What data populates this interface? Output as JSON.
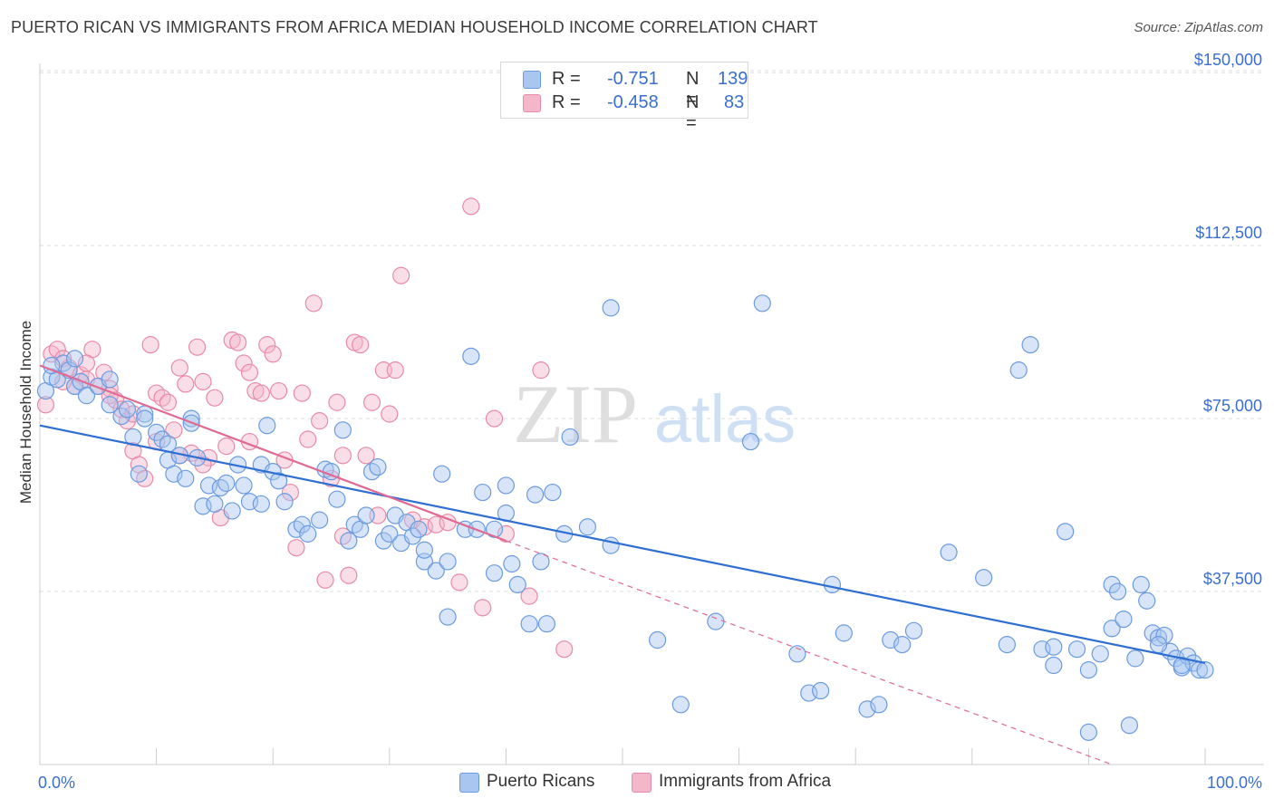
{
  "title": "PUERTO RICAN VS IMMIGRANTS FROM AFRICA MEDIAN HOUSEHOLD INCOME CORRELATION CHART",
  "source": "Source: ZipAtlas.com",
  "watermark": {
    "zip": "ZIP",
    "atlas": "atlas"
  },
  "colors": {
    "blue_fill": "#a9c6f0",
    "blue_stroke": "#6b9be0",
    "blue_line": "#2f6fd3",
    "pink_fill": "#f4b6c9",
    "pink_stroke": "#e98aa8",
    "pink_line": "#e06a92",
    "tick_label": "#3a6fd0",
    "grid": "#dddddd"
  },
  "legend": {
    "rows": [
      {
        "r_label": "R = ",
        "r_value": "-0.751",
        "n_label": "N = ",
        "n_value": "139"
      },
      {
        "r_label": "R = ",
        "r_value": "-0.458",
        "n_label": "N = ",
        "n_value": "83"
      }
    ]
  },
  "chart_data": {
    "type": "scatter",
    "title": "PUERTO RICAN VS IMMIGRANTS FROM AFRICA MEDIAN HOUSEHOLD INCOME CORRELATION CHART",
    "xlabel": "",
    "ylabel": "Median Household Income",
    "xlim": [
      0,
      100
    ],
    "ylim": [
      0,
      152000
    ],
    "x_tick_labels": [
      "0.0%",
      "100.0%"
    ],
    "y_ticks": [
      37500,
      75000,
      112500,
      150000
    ],
    "y_tick_labels": [
      "$37,500",
      "$75,000",
      "$112,500",
      "$150,000"
    ],
    "grid": true,
    "legend_position": "top-center",
    "series": [
      {
        "name": "Puerto Ricans",
        "r": -0.751,
        "n": 139,
        "trend": {
          "x": [
            0,
            100
          ],
          "y": [
            73500,
            22000
          ]
        },
        "points": [
          [
            0.5,
            81000
          ],
          [
            1,
            84000
          ],
          [
            1.5,
            83500
          ],
          [
            2,
            87000
          ],
          [
            2.5,
            85500
          ],
          [
            3,
            82000
          ],
          [
            3.5,
            83000
          ],
          [
            4,
            80000
          ],
          [
            5,
            82000
          ],
          [
            6,
            83500
          ],
          [
            7,
            75500
          ],
          [
            7.5,
            77000
          ],
          [
            8,
            71000
          ],
          [
            8.5,
            63000
          ],
          [
            9,
            76000
          ],
          [
            10,
            72000
          ],
          [
            10.5,
            70500
          ],
          [
            11,
            69500
          ],
          [
            11,
            66000
          ],
          [
            11.5,
            63000
          ],
          [
            12,
            67000
          ],
          [
            12.5,
            62000
          ],
          [
            13,
            75000
          ],
          [
            13.5,
            66500
          ],
          [
            14,
            56000
          ],
          [
            14.5,
            60500
          ],
          [
            15,
            56500
          ],
          [
            15.5,
            60000
          ],
          [
            16,
            61000
          ],
          [
            16.5,
            55000
          ],
          [
            17,
            65000
          ],
          [
            17.5,
            60500
          ],
          [
            18,
            57000
          ],
          [
            19,
            56500
          ],
          [
            19,
            65000
          ],
          [
            19.5,
            73500
          ],
          [
            20,
            63500
          ],
          [
            20.5,
            61500
          ],
          [
            21,
            57000
          ],
          [
            22,
            51000
          ],
          [
            22.5,
            52000
          ],
          [
            23,
            50000
          ],
          [
            24,
            53000
          ],
          [
            24.5,
            64000
          ],
          [
            25,
            63500
          ],
          [
            25.5,
            57500
          ],
          [
            26,
            72500
          ],
          [
            26.5,
            48500
          ],
          [
            27,
            52000
          ],
          [
            27.5,
            51000
          ],
          [
            28,
            54000
          ],
          [
            28.5,
            63500
          ],
          [
            29,
            64500
          ],
          [
            29.5,
            48500
          ],
          [
            30,
            50000
          ],
          [
            30.5,
            54000
          ],
          [
            31,
            48000
          ],
          [
            31.5,
            52500
          ],
          [
            32,
            49500
          ],
          [
            32.5,
            51000
          ],
          [
            33,
            44000
          ],
          [
            33,
            46500
          ],
          [
            34,
            42000
          ],
          [
            34.5,
            63000
          ],
          [
            35,
            44000
          ],
          [
            35,
            32000
          ],
          [
            36.5,
            51000
          ],
          [
            37,
            88500
          ],
          [
            37.5,
            51000
          ],
          [
            38,
            59000
          ],
          [
            39,
            51000
          ],
          [
            39,
            41500
          ],
          [
            40,
            54500
          ],
          [
            40,
            60500
          ],
          [
            40.5,
            43500
          ],
          [
            41,
            39000
          ],
          [
            42,
            30500
          ],
          [
            42.5,
            58500
          ],
          [
            43,
            44000
          ],
          [
            43.5,
            30500
          ],
          [
            44,
            59000
          ],
          [
            45,
            50000
          ],
          [
            45.5,
            71000
          ],
          [
            47,
            51500
          ],
          [
            49,
            47500
          ],
          [
            49,
            99000
          ],
          [
            53,
            27000
          ],
          [
            55,
            13000
          ],
          [
            58,
            31000
          ],
          [
            61,
            70000
          ],
          [
            62,
            100000
          ],
          [
            65,
            24000
          ],
          [
            66,
            15500
          ],
          [
            67,
            16000
          ],
          [
            68,
            39000
          ],
          [
            69,
            28500
          ],
          [
            71,
            12000
          ],
          [
            72,
            13000
          ],
          [
            73,
            27000
          ],
          [
            74,
            26000
          ],
          [
            75,
            29000
          ],
          [
            78,
            46000
          ],
          [
            81,
            40500
          ],
          [
            83,
            26000
          ],
          [
            84,
            85500
          ],
          [
            85,
            91000
          ],
          [
            86,
            25000
          ],
          [
            87,
            25500
          ],
          [
            87,
            21500
          ],
          [
            88,
            50500
          ],
          [
            89,
            25000
          ],
          [
            90,
            20500
          ],
          [
            90,
            7000
          ],
          [
            91,
            24000
          ],
          [
            92,
            39000
          ],
          [
            92,
            29500
          ],
          [
            92.5,
            37500
          ],
          [
            93,
            31500
          ],
          [
            93.5,
            8500
          ],
          [
            94,
            23000
          ],
          [
            94.5,
            39000
          ],
          [
            95,
            35500
          ],
          [
            95.5,
            28500
          ],
          [
            96,
            27500
          ],
          [
            96.5,
            28000
          ],
          [
            97,
            24500
          ],
          [
            97.5,
            23000
          ],
          [
            98,
            21000
          ],
          [
            98.5,
            23500
          ],
          [
            99,
            22000
          ],
          [
            99.5,
            20500
          ],
          [
            96,
            26000
          ],
          [
            98,
            21500
          ],
          [
            100,
            20500
          ],
          [
            1,
            86500
          ],
          [
            3,
            88000
          ],
          [
            6,
            78000
          ],
          [
            9,
            75000
          ],
          [
            13,
            74000
          ]
        ]
      },
      {
        "name": "Immigrants from Africa",
        "r": -0.458,
        "n": 83,
        "trend": {
          "x": [
            0,
            40
          ],
          "y": [
            86500,
            48500
          ]
        },
        "trend_dashed": {
          "x": [
            40,
            92
          ],
          "y": [
            48500,
            0
          ]
        },
        "points": [
          [
            0.5,
            78000
          ],
          [
            1,
            89000
          ],
          [
            1.5,
            90000
          ],
          [
            2,
            88000
          ],
          [
            2.5,
            86000
          ],
          [
            3,
            82000
          ],
          [
            3.5,
            84500
          ],
          [
            4,
            83500
          ],
          [
            4.5,
            90000
          ],
          [
            5,
            82000
          ],
          [
            5.5,
            85000
          ],
          [
            6,
            81500
          ],
          [
            6.5,
            79000
          ],
          [
            7,
            77000
          ],
          [
            7.5,
            74500
          ],
          [
            8,
            68000
          ],
          [
            8.5,
            65000
          ],
          [
            9,
            62000
          ],
          [
            9.5,
            91000
          ],
          [
            10,
            80500
          ],
          [
            10.5,
            79500
          ],
          [
            11,
            78500
          ],
          [
            11.5,
            72500
          ],
          [
            12,
            86000
          ],
          [
            12.5,
            82500
          ],
          [
            13,
            67500
          ],
          [
            13.5,
            90500
          ],
          [
            14,
            83000
          ],
          [
            14.5,
            66500
          ],
          [
            15,
            79500
          ],
          [
            15.5,
            53500
          ],
          [
            16,
            69000
          ],
          [
            16.5,
            92000
          ],
          [
            17,
            91500
          ],
          [
            17.5,
            87000
          ],
          [
            18,
            85000
          ],
          [
            18.5,
            81000
          ],
          [
            19,
            80500
          ],
          [
            19.5,
            91000
          ],
          [
            20,
            89000
          ],
          [
            20.5,
            81000
          ],
          [
            21,
            66000
          ],
          [
            21.5,
            59000
          ],
          [
            22,
            47000
          ],
          [
            22.5,
            80500
          ],
          [
            23,
            70500
          ],
          [
            23.5,
            100000
          ],
          [
            24,
            74500
          ],
          [
            24.5,
            40000
          ],
          [
            25,
            62000
          ],
          [
            25.5,
            78500
          ],
          [
            26,
            49500
          ],
          [
            26.5,
            41000
          ],
          [
            27,
            91500
          ],
          [
            27.5,
            91000
          ],
          [
            28,
            67000
          ],
          [
            28.5,
            78500
          ],
          [
            29,
            54000
          ],
          [
            29.5,
            85500
          ],
          [
            30,
            76000
          ],
          [
            30.5,
            85500
          ],
          [
            31,
            106000
          ],
          [
            32,
            53000
          ],
          [
            33,
            51500
          ],
          [
            34,
            52000
          ],
          [
            35,
            52500
          ],
          [
            36,
            39500
          ],
          [
            37,
            121000
          ],
          [
            38,
            34000
          ],
          [
            39,
            75000
          ],
          [
            40,
            50000
          ],
          [
            42,
            36500
          ],
          [
            43,
            85500
          ],
          [
            45,
            25000
          ],
          [
            2,
            83000
          ],
          [
            4,
            87000
          ],
          [
            6,
            80000
          ],
          [
            8,
            76000
          ],
          [
            10,
            70000
          ],
          [
            12,
            67000
          ],
          [
            14,
            65000
          ],
          [
            18,
            70000
          ],
          [
            26,
            67000
          ]
        ]
      }
    ]
  },
  "bottom_legend": [
    "Puerto Ricans",
    "Immigrants from Africa"
  ]
}
